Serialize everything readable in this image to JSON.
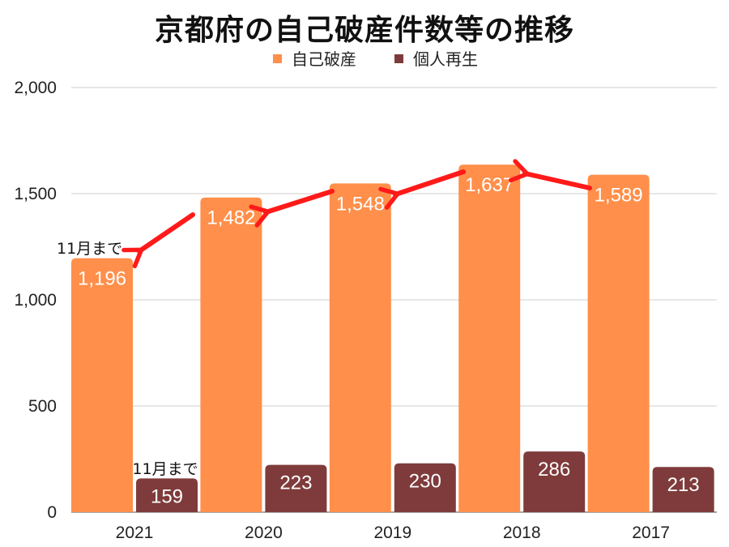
{
  "chart_data": {
    "type": "bar",
    "title": "京都府の自己破産件数等の推移",
    "categories": [
      "2021",
      "2020",
      "2019",
      "2018",
      "2017"
    ],
    "series": [
      {
        "name": "自己破産",
        "color": "#FF8F4A",
        "values": [
          1196,
          1482,
          1548,
          1637,
          1589
        ],
        "value_labels": [
          "1,196",
          "1,482",
          "1,548",
          "1,637",
          "1,589"
        ]
      },
      {
        "name": "個人再生",
        "color": "#7F3B3B",
        "values": [
          159,
          223,
          230,
          286,
          213
        ],
        "value_labels": [
          "159",
          "223",
          "230",
          "286",
          "213"
        ]
      }
    ],
    "ylim": [
      0,
      2000
    ],
    "yticks": [
      0,
      500,
      1000,
      1500,
      2000
    ],
    "ytick_labels": [
      "0",
      "500",
      "1,000",
      "1,500",
      "2,000"
    ],
    "grid": true,
    "legend_position": "top-center",
    "annotations": [
      {
        "text": "11月まで",
        "target": "自己破産-2021"
      },
      {
        "text": "11月まで",
        "target": "個人再生-2021"
      }
    ],
    "arrow_color": "#FF1A1A"
  }
}
